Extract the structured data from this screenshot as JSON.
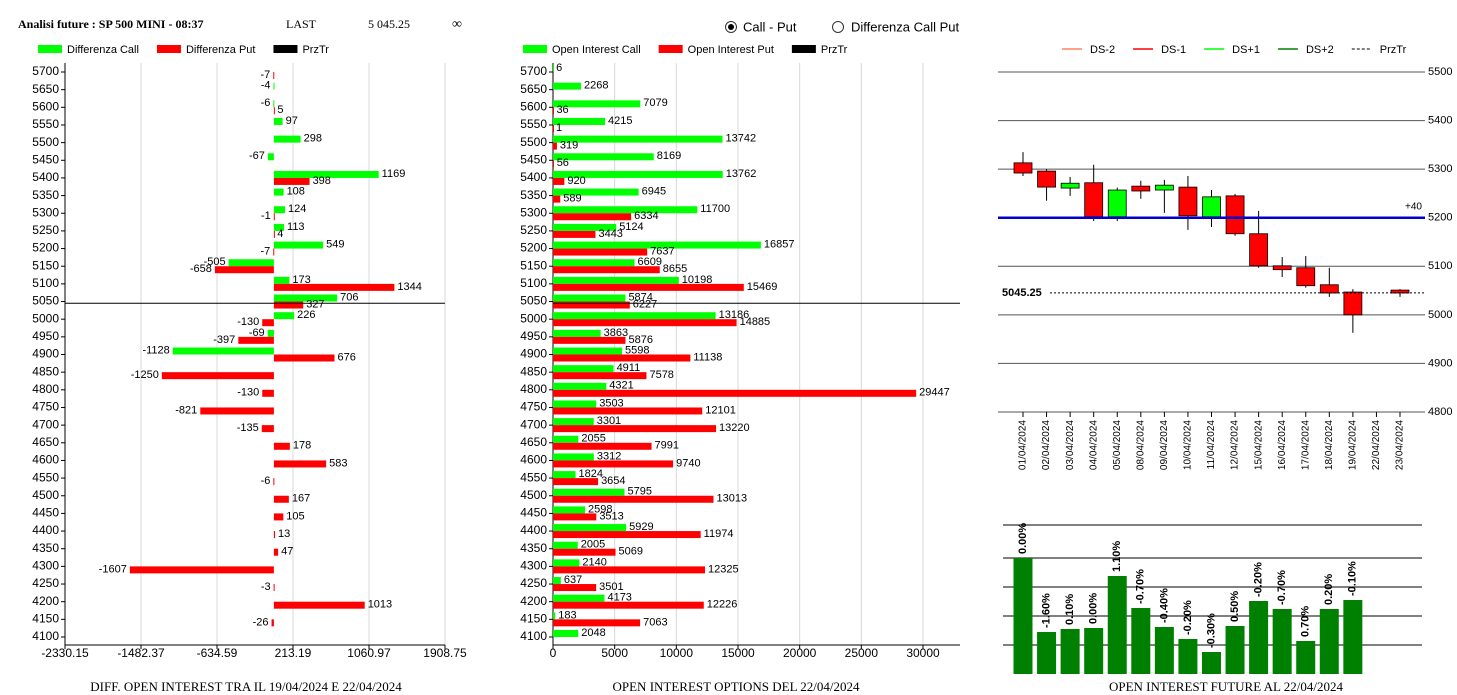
{
  "header": {
    "title": "Analisi future : SP 500 MINI - 08:37",
    "last_label": "LAST",
    "last": "5 045.25",
    "extra": "∞"
  },
  "options": [
    {
      "label": "Call - Put",
      "selected": true
    },
    {
      "label": "Differenza Call Put",
      "selected": false
    }
  ],
  "chart_data": [
    {
      "type": "hbar",
      "title": "DIFF. OPEN INTEREST TRA IL 19/04/2024 E 22/04/2024",
      "categories": [
        5700,
        5650,
        5600,
        5550,
        5500,
        5450,
        5400,
        5350,
        5300,
        5250,
        5200,
        5150,
        5100,
        5050,
        5000,
        4950,
        4900,
        4850,
        4800,
        4750,
        4700,
        4650,
        4600,
        4550,
        4500,
        4450,
        4400,
        4350,
        4300,
        4250,
        4200,
        4150,
        4100
      ],
      "series": [
        {
          "name": "Differenza Call",
          "color": "#00ff00",
          "values": [
            null,
            -4,
            -6,
            97,
            298,
            -67,
            1169,
            108,
            124,
            113,
            549,
            -505,
            173,
            706,
            226,
            -69,
            -1128,
            null,
            null,
            null,
            null,
            null,
            null,
            null,
            null,
            null,
            null,
            null,
            null,
            null,
            null,
            null,
            null
          ]
        },
        {
          "name": "Differenza Put",
          "color": "#ff0000",
          "values": [
            -7,
            null,
            5,
            null,
            null,
            null,
            398,
            null,
            -1,
            4,
            -7,
            -658,
            1344,
            327,
            -130,
            -397,
            676,
            -1250,
            -130,
            -821,
            -135,
            178,
            583,
            -6,
            167,
            105,
            13,
            47,
            -1607,
            -3,
            1013,
            -26,
            null
          ]
        }
      ],
      "price_line": {
        "name": "PrzTr",
        "color": "#000000",
        "value": 5045.25
      },
      "xlim": [
        -2330.15,
        1908.75
      ],
      "xticks": [
        -2330.15,
        -1482.37,
        -634.59,
        213.19,
        1060.97,
        1908.75
      ],
      "grid": true
    },
    {
      "type": "hbar",
      "title": "OPEN INTEREST OPTIONS DEL 22/04/2024",
      "categories": [
        5700,
        5650,
        5600,
        5550,
        5500,
        5450,
        5400,
        5350,
        5300,
        5250,
        5200,
        5150,
        5100,
        5050,
        5000,
        4950,
        4900,
        4850,
        4800,
        4750,
        4700,
        4650,
        4600,
        4550,
        4500,
        4450,
        4400,
        4350,
        4300,
        4250,
        4200,
        4150,
        4100
      ],
      "series": [
        {
          "name": "Open Interest Call",
          "color": "#00ff00",
          "values": [
            6,
            2268,
            7079,
            4215,
            13742,
            8169,
            13762,
            6945,
            11700,
            5124,
            16857,
            6609,
            10198,
            5874,
            13186,
            3863,
            5598,
            4911,
            4321,
            3503,
            3301,
            2055,
            3312,
            1824,
            5795,
            2598,
            5929,
            2005,
            2140,
            637,
            4173,
            183,
            2048
          ]
        },
        {
          "name": "Open Interest Put",
          "color": "#ff0000",
          "values": [
            null,
            null,
            36,
            1,
            319,
            56,
            920,
            589,
            6334,
            3443,
            7637,
            8655,
            15469,
            6227,
            14885,
            5876,
            11138,
            7578,
            29447,
            12101,
            13220,
            7991,
            9740,
            3654,
            13013,
            3513,
            11974,
            5069,
            12325,
            3501,
            12226,
            7063,
            null
          ]
        }
      ],
      "price_line": {
        "name": "PrzTr",
        "color": "#000000",
        "value": 5045.25
      },
      "xlim": [
        0,
        33000
      ],
      "xticks": [
        0,
        5000,
        10000,
        15000,
        20000,
        25000,
        30000
      ],
      "grid": true
    },
    {
      "type": "candlestick",
      "x": [
        "01/04/2024",
        "02/04/2024",
        "03/04/2024",
        "04/04/2024",
        "05/04/2024",
        "08/04/2024",
        "09/04/2024",
        "10/04/2024",
        "11/04/2024",
        "12/04/2024",
        "15/04/2024",
        "16/04/2024",
        "17/04/2024",
        "18/04/2024",
        "19/04/2024",
        "22/04/2024",
        "23/04/2024"
      ],
      "open": [
        5313,
        5296,
        5261,
        5272,
        5202,
        5265,
        5257,
        5263,
        5202,
        5245,
        5167,
        5101,
        5097,
        5062,
        5047,
        null,
        5051
      ],
      "high": [
        5335,
        5300,
        5284,
        5309,
        5262,
        5276,
        5278,
        5286,
        5257,
        5249,
        5214,
        5119,
        5121,
        5097,
        5053,
        null,
        5053
      ],
      "low": [
        5286,
        5235,
        5245,
        5193,
        5193,
        5239,
        5210,
        5175,
        5181,
        5163,
        5097,
        5078,
        5056,
        5037,
        4963,
        null,
        5037
      ],
      "close": [
        5292,
        5263,
        5271,
        5202,
        5257,
        5255,
        5267,
        5204,
        5243,
        5167,
        5101,
        5093,
        5060,
        5045,
        5000,
        null,
        5045
      ],
      "up_color": "#00ff00",
      "down_color": "#ff0000",
      "legend": [
        {
          "name": "DS-2",
          "color": "#ff8060"
        },
        {
          "name": "DS-1",
          "color": "#ff0000"
        },
        {
          "name": "DS+1",
          "color": "#00ff00"
        },
        {
          "name": "DS+2",
          "color": "#008000"
        },
        {
          "name": "PrzTr",
          "color": "#000000",
          "dashed": true
        }
      ],
      "level": {
        "value": 5200,
        "label": "+40",
        "color": "#0000cc"
      },
      "price_line": {
        "value": 5045.25,
        "color": "#000000"
      },
      "ylim": [
        4800,
        5500
      ],
      "yticks": [
        4800,
        4900,
        5000,
        5100,
        5200,
        5300,
        5400,
        5500
      ],
      "grid": true
    },
    {
      "type": "bar",
      "title": "OPEN INTEREST FUTURE AL 22/04/2024",
      "color": "#008000",
      "open_interest": [
        116,
        42,
        45,
        46,
        98,
        66,
        47,
        35,
        22,
        48,
        73,
        65,
        33,
        65,
        74
      ],
      "values": [
        0,
        -1.6,
        0.1,
        0,
        1.1,
        -0.7,
        -0.4,
        -0.2,
        -0.3,
        0.5,
        -0.2,
        -0.7,
        0.7,
        0.2,
        -0.1
      ],
      "value_labels": [
        "0.00%",
        "-1.60%",
        "0.10%",
        "0.00%",
        "1.10%",
        "-0.70%",
        "-0.40%",
        "-0.20%",
        "-0.30%",
        "0.50%",
        "-0.20%",
        "-0.70%",
        "0.70%",
        "0.20%",
        "-0.10%"
      ],
      "ylim": [
        0,
        150
      ]
    }
  ]
}
